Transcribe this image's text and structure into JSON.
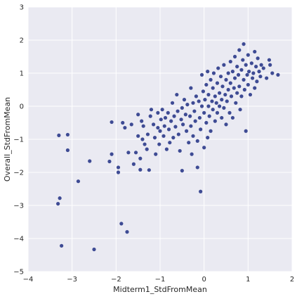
{
  "chart_data": {
    "type": "scatter",
    "title": "",
    "xlabel": "Midterm1_StdFromMean",
    "ylabel": "Overall_StdFromMean",
    "xlim": [
      -4,
      2
    ],
    "ylim": [
      -5,
      3
    ],
    "xticks": [
      -4,
      -3,
      -2,
      -1,
      0,
      1,
      2
    ],
    "yticks": [
      -5,
      -4,
      -3,
      -2,
      -1,
      0,
      1,
      2,
      3
    ],
    "grid": true,
    "legend": "none",
    "point_color": "#2b3a8a",
    "background_color": "#eaeaf2",
    "series": [
      {
        "points": [
          [
            -3.32,
            -2.95
          ],
          [
            -3.28,
            -2.78
          ],
          [
            -3.24,
            -4.22
          ],
          [
            -3.3,
            -0.88
          ],
          [
            -3.1,
            -0.86
          ],
          [
            -3.1,
            -1.33
          ],
          [
            -2.86,
            -2.27
          ],
          [
            -2.6,
            -1.66
          ],
          [
            -2.5,
            -4.33
          ],
          [
            -2.15,
            -1.67
          ],
          [
            -2.1,
            -1.45
          ],
          [
            -2.1,
            -0.48
          ],
          [
            -1.95,
            -1.85
          ],
          [
            -1.95,
            -2.0
          ],
          [
            -1.88,
            -3.55
          ],
          [
            -1.85,
            -0.5
          ],
          [
            -1.8,
            -0.65
          ],
          [
            -1.75,
            -3.8
          ],
          [
            -1.72,
            -1.4
          ],
          [
            -1.65,
            -0.55
          ],
          [
            -1.6,
            -1.75
          ],
          [
            -1.55,
            -1.4
          ],
          [
            -1.5,
            -0.25
          ],
          [
            -1.5,
            -0.9
          ],
          [
            -1.45,
            -1.58
          ],
          [
            -1.45,
            -1.92
          ],
          [
            -1.42,
            -0.45
          ],
          [
            -1.4,
            -1.0
          ],
          [
            -1.38,
            -0.6
          ],
          [
            -1.35,
            -1.15
          ],
          [
            -1.3,
            -1.3
          ],
          [
            -1.28,
            -0.85
          ],
          [
            -1.25,
            -1.93
          ],
          [
            -1.22,
            -0.3
          ],
          [
            -1.2,
            -0.1
          ],
          [
            -1.15,
            -0.55
          ],
          [
            -1.12,
            -0.95
          ],
          [
            -1.1,
            -1.45
          ],
          [
            -1.05,
            -0.2
          ],
          [
            -1.05,
            -0.65
          ],
          [
            -1.02,
            -1.15
          ],
          [
            -1.0,
            -0.75
          ],
          [
            -0.98,
            -0.4
          ],
          [
            -0.95,
            -0.1
          ],
          [
            -0.92,
            -0.9
          ],
          [
            -0.9,
            -0.6
          ],
          [
            -0.88,
            -0.35
          ],
          [
            -0.85,
            -1.3
          ],
          [
            -0.82,
            -0.2
          ],
          [
            -0.8,
            -0.7
          ],
          [
            -0.78,
            -1.1
          ],
          [
            -0.75,
            -0.45
          ],
          [
            -0.72,
            0.1
          ],
          [
            -0.7,
            -0.95
          ],
          [
            -0.68,
            -0.3
          ],
          [
            -0.65,
            -0.62
          ],
          [
            -0.62,
            0.35
          ],
          [
            -0.6,
            -0.15
          ],
          [
            -0.58,
            -0.85
          ],
          [
            -0.55,
            -1.35
          ],
          [
            -0.52,
            -0.4
          ],
          [
            -0.5,
            -0.05
          ],
          [
            -0.5,
            -1.95
          ],
          [
            -0.48,
            -0.55
          ],
          [
            -0.45,
            0.2
          ],
          [
            -0.42,
            -0.25
          ],
          [
            -0.4,
            -0.75
          ],
          [
            -0.38,
            0.05
          ],
          [
            -0.35,
            -1.1
          ],
          [
            -0.32,
            -0.3
          ],
          [
            -0.3,
            0.55
          ],
          [
            -0.3,
            -0.6
          ],
          [
            -0.28,
            -1.45
          ],
          [
            -0.25,
            0.1
          ],
          [
            -0.25,
            -0.9
          ],
          [
            -0.22,
            -0.15
          ],
          [
            -0.2,
            -0.45
          ],
          [
            -0.18,
            0.3
          ],
          [
            -0.15,
            -1.05
          ],
          [
            -0.15,
            -1.85
          ],
          [
            -0.12,
            0.15
          ],
          [
            -0.1,
            -0.35
          ],
          [
            -0.08,
            -0.7
          ],
          [
            -0.08,
            -2.58
          ],
          [
            -0.05,
            0.0
          ],
          [
            -0.05,
            0.95
          ],
          [
            -0.02,
            0.45
          ],
          [
            0.0,
            -0.2
          ],
          [
            0.0,
            -1.25
          ],
          [
            0.02,
            0.2
          ],
          [
            0.05,
            0.65
          ],
          [
            0.05,
            -0.5
          ],
          [
            0.08,
            1.05
          ],
          [
            0.08,
            -0.95
          ],
          [
            0.1,
            0.0
          ],
          [
            0.1,
            0.35
          ],
          [
            0.12,
            -0.3
          ],
          [
            0.15,
            0.8
          ],
          [
            0.15,
            -0.75
          ],
          [
            0.18,
            0.15
          ],
          [
            0.2,
            -0.1
          ],
          [
            0.2,
            0.55
          ],
          [
            0.22,
            1.0
          ],
          [
            0.25,
            0.3
          ],
          [
            0.25,
            -0.45
          ],
          [
            0.28,
            0.1
          ],
          [
            0.3,
            0.7
          ],
          [
            0.3,
            -0.2
          ],
          [
            0.32,
            1.15
          ],
          [
            0.35,
            0.4
          ],
          [
            0.35,
            0.0
          ],
          [
            0.38,
            0.9
          ],
          [
            0.4,
            0.2
          ],
          [
            0.4,
            -0.35
          ],
          [
            0.42,
            0.6
          ],
          [
            0.45,
            1.25
          ],
          [
            0.45,
            -0.05
          ],
          [
            0.48,
            0.35
          ],
          [
            0.5,
            0.8
          ],
          [
            0.5,
            -0.55
          ],
          [
            0.52,
            0.15
          ],
          [
            0.55,
            1.0
          ],
          [
            0.55,
            0.5
          ],
          [
            0.58,
            -0.2
          ],
          [
            0.6,
            1.35
          ],
          [
            0.6,
            0.7
          ],
          [
            0.62,
            0.3
          ],
          [
            0.65,
            1.05
          ],
          [
            0.65,
            -0.35
          ],
          [
            0.68,
            0.55
          ],
          [
            0.7,
            1.5
          ],
          [
            0.7,
            0.85
          ],
          [
            0.72,
            0.1
          ],
          [
            0.75,
            1.2
          ],
          [
            0.75,
            0.4
          ],
          [
            0.78,
            0.95
          ],
          [
            0.8,
            1.7
          ],
          [
            0.8,
            0.6
          ],
          [
            0.82,
            -0.1
          ],
          [
            0.85,
            1.1
          ],
          [
            0.85,
            0.3
          ],
          [
            0.88,
            1.4
          ],
          [
            0.9,
            0.8
          ],
          [
            0.9,
            1.88
          ],
          [
            0.92,
            0.5
          ],
          [
            0.95,
            1.25
          ],
          [
            0.95,
            -0.75
          ],
          [
            0.98,
            0.95
          ],
          [
            1.0,
            1.55
          ],
          [
            1.0,
            0.65
          ],
          [
            1.02,
            1.05
          ],
          [
            1.05,
            0.35
          ],
          [
            1.08,
            1.3
          ],
          [
            1.1,
            0.85
          ],
          [
            1.12,
            1.0
          ],
          [
            1.15,
            1.65
          ],
          [
            1.15,
            0.55
          ],
          [
            1.18,
            1.2
          ],
          [
            1.2,
            0.75
          ],
          [
            1.22,
            1.45
          ],
          [
            1.25,
            1.05
          ],
          [
            1.28,
            0.9
          ],
          [
            1.3,
            1.25
          ],
          [
            1.35,
            1.15
          ],
          [
            1.42,
            0.85
          ],
          [
            1.48,
            1.4
          ],
          [
            1.5,
            1.25
          ],
          [
            1.55,
            1.0
          ],
          [
            1.68,
            0.95
          ]
        ]
      }
    ]
  }
}
